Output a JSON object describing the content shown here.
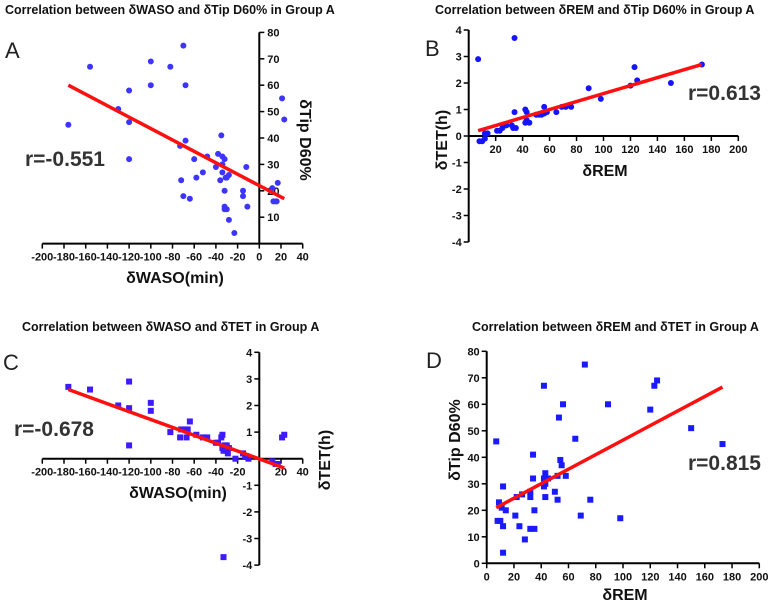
{
  "chart_data": [
    {
      "type": "scatter",
      "panel_letter": "A",
      "title": "Correlation between δWASO and δTip D60% in Group A",
      "xlabel": "δWASO(min)",
      "ylabel": "δTip D60%",
      "r_label": "r=-0.551",
      "xlim": [
        -200,
        40
      ],
      "ylim": [
        0,
        80
      ],
      "xticks": [
        -200,
        -180,
        -160,
        -140,
        -120,
        -100,
        -80,
        -60,
        -40,
        -20,
        0,
        20,
        40
      ],
      "yticks": [
        10,
        20,
        30,
        40,
        50,
        60,
        70,
        80
      ],
      "marker": "circle",
      "point_color": "#3d35ff",
      "line_color": "#ff1010",
      "points": [
        [
          -176,
          45
        ],
        [
          -156,
          67
        ],
        [
          -130,
          51
        ],
        [
          -120,
          58
        ],
        [
          -120,
          46
        ],
        [
          -120,
          32
        ],
        [
          -100,
          69
        ],
        [
          -100,
          60
        ],
        [
          -82,
          67
        ],
        [
          -70,
          75
        ],
        [
          -68,
          60
        ],
        [
          -68,
          39
        ],
        [
          -73,
          37
        ],
        [
          -72,
          24
        ],
        [
          -70,
          18
        ],
        [
          -64,
          17
        ],
        [
          -60,
          32
        ],
        [
          -58,
          25
        ],
        [
          -52,
          27
        ],
        [
          -48,
          33
        ],
        [
          -40,
          29
        ],
        [
          -38,
          34
        ],
        [
          -36,
          24
        ],
        [
          -35,
          41
        ],
        [
          -34,
          33
        ],
        [
          -34,
          30
        ],
        [
          -34,
          27
        ],
        [
          -32,
          32
        ],
        [
          -32,
          20
        ],
        [
          -32,
          14
        ],
        [
          -32,
          13
        ],
        [
          -30,
          13
        ],
        [
          -31,
          25
        ],
        [
          -30,
          25
        ],
        [
          -28,
          26
        ],
        [
          -28,
          9
        ],
        [
          -23,
          4
        ],
        [
          -15,
          20
        ],
        [
          -15,
          18
        ],
        [
          -12,
          29
        ],
        [
          -11,
          14
        ],
        [
          12,
          21
        ],
        [
          13,
          16
        ],
        [
          15,
          16
        ],
        [
          16,
          16
        ],
        [
          17,
          23
        ],
        [
          21,
          55
        ],
        [
          23,
          47
        ]
      ],
      "regression": [
        [
          -176,
          60
        ],
        [
          23,
          17
        ]
      ]
    },
    {
      "type": "scatter",
      "panel_letter": "B",
      "title": "Correlation between δREM and δTip D60% in Group A",
      "xlabel": "δREM",
      "ylabel": "δTET(h)",
      "r_label": "r=0.613",
      "xlim": [
        0,
        200
      ],
      "ylim": [
        -4,
        4
      ],
      "xticks": [
        20,
        40,
        60,
        80,
        100,
        120,
        140,
        160,
        180,
        200
      ],
      "yticks": [
        -4,
        -3,
        -2,
        -1,
        0,
        1,
        2,
        3,
        4
      ],
      "marker": "circle",
      "point_color": "#1414ff",
      "line_color": "#ff1010",
      "points": [
        [
          7,
          2.9
        ],
        [
          34,
          3.7
        ],
        [
          8,
          -0.2
        ],
        [
          10,
          -0.2
        ],
        [
          12,
          -0.1
        ],
        [
          12,
          0.1
        ],
        [
          14,
          0.1
        ],
        [
          21,
          0.2
        ],
        [
          23,
          0.2
        ],
        [
          25,
          0.3
        ],
        [
          28,
          0.4
        ],
        [
          32,
          0.4
        ],
        [
          33,
          0.3
        ],
        [
          34,
          0.9
        ],
        [
          35,
          0.3
        ],
        [
          42,
          1.0
        ],
        [
          42,
          0.5
        ],
        [
          43,
          0.6
        ],
        [
          43,
          0.9
        ],
        [
          45,
          0.5
        ],
        [
          50,
          0.8
        ],
        [
          52,
          0.8
        ],
        [
          54,
          0.8
        ],
        [
          56,
          1.1
        ],
        [
          56,
          0.85
        ],
        [
          58,
          0.9
        ],
        [
          65,
          0.9
        ],
        [
          69,
          1.1
        ],
        [
          72,
          1.1
        ],
        [
          76,
          1.1
        ],
        [
          89,
          1.8
        ],
        [
          98,
          1.4
        ],
        [
          120,
          1.9
        ],
        [
          123,
          2.6
        ],
        [
          125,
          2.1
        ],
        [
          150,
          2.0
        ],
        [
          173,
          2.7
        ]
      ],
      "regression": [
        [
          7,
          0.2
        ],
        [
          173,
          2.7
        ]
      ]
    },
    {
      "type": "scatter",
      "panel_letter": "C",
      "title": "Correlation between δWASO and δTET in Group A",
      "xlabel": "δWASO(min)",
      "ylabel": "δTET(h)",
      "r_label": "r=-0.678",
      "xlim": [
        -200,
        40
      ],
      "ylim": [
        -4,
        4
      ],
      "xticks": [
        -200,
        -180,
        -160,
        -140,
        -120,
        -100,
        -80,
        -60,
        -40,
        -20,
        20,
        40
      ],
      "yticks": [
        -4,
        -3,
        -2,
        -1,
        1,
        2,
        3,
        4
      ],
      "marker": "square",
      "point_color": "#3d1aff",
      "line_color": "#ff1010",
      "points": [
        [
          -176,
          2.7
        ],
        [
          -156,
          2.6
        ],
        [
          -130,
          2.0
        ],
        [
          -120,
          2.9
        ],
        [
          -120,
          1.9
        ],
        [
          -120,
          0.5
        ],
        [
          -100,
          2.1
        ],
        [
          -100,
          1.8
        ],
        [
          -82,
          1.0
        ],
        [
          -73,
          0.8
        ],
        [
          -72,
          1.1
        ],
        [
          -68,
          1.1
        ],
        [
          -66,
          1.1
        ],
        [
          -67,
          0.8
        ],
        [
          -64,
          1.4
        ],
        [
          -58,
          0.9
        ],
        [
          -52,
          0.8
        ],
        [
          -48,
          0.8
        ],
        [
          -40,
          0.6
        ],
        [
          -38,
          0.6
        ],
        [
          -35,
          0.8
        ],
        [
          -34,
          0.9
        ],
        [
          -34,
          0.4
        ],
        [
          -33,
          0.3
        ],
        [
          -32,
          0.5
        ],
        [
          -30,
          0.5
        ],
        [
          -30,
          0.3
        ],
        [
          -28,
          0.4
        ],
        [
          -29,
          0.2
        ],
        [
          -33,
          -3.7
        ],
        [
          -22,
          0
        ],
        [
          -15,
          0.2
        ],
        [
          -13,
          0.1
        ],
        [
          -12,
          0.1
        ],
        [
          -10,
          0
        ],
        [
          12,
          -0.1
        ],
        [
          15,
          -0.2
        ],
        [
          17,
          -0.2
        ],
        [
          21,
          0.8
        ],
        [
          23,
          0.9
        ]
      ],
      "regression": [
        [
          -176,
          2.6
        ],
        [
          23,
          -0.35
        ]
      ]
    },
    {
      "type": "scatter",
      "panel_letter": "D",
      "title": "Correlation between δREM and δTET in Group A",
      "xlabel": "δREM",
      "ylabel": "δTip D60%",
      "r_label": "r=0.815",
      "xlim": [
        0,
        200
      ],
      "ylim": [
        0,
        80
      ],
      "xticks": [
        0,
        20,
        40,
        60,
        80,
        100,
        120,
        140,
        160,
        180,
        200
      ],
      "yticks": [
        0,
        10,
        20,
        30,
        40,
        50,
        60,
        70,
        80
      ],
      "marker": "square",
      "point_color": "#1a1aff",
      "line_color": "#ff1010",
      "points": [
        [
          7,
          46
        ],
        [
          8,
          16
        ],
        [
          10,
          16
        ],
        [
          9,
          23
        ],
        [
          11,
          21
        ],
        [
          12,
          29
        ],
        [
          12,
          14
        ],
        [
          12,
          4
        ],
        [
          14,
          20
        ],
        [
          21,
          18
        ],
        [
          22,
          25
        ],
        [
          24,
          14
        ],
        [
          26,
          26
        ],
        [
          28,
          9
        ],
        [
          32,
          27
        ],
        [
          32,
          25
        ],
        [
          32,
          13
        ],
        [
          34,
          41
        ],
        [
          34,
          32
        ],
        [
          35,
          20
        ],
        [
          35,
          13
        ],
        [
          42,
          67
        ],
        [
          42,
          29
        ],
        [
          42,
          32
        ],
        [
          43,
          34
        ],
        [
          43,
          25
        ],
        [
          43,
          30
        ],
        [
          45,
          32
        ],
        [
          50,
          27
        ],
        [
          52,
          33
        ],
        [
          52,
          24
        ],
        [
          53,
          55
        ],
        [
          54,
          39
        ],
        [
          55,
          37
        ],
        [
          56,
          60
        ],
        [
          58,
          33
        ],
        [
          65,
          47
        ],
        [
          69,
          18
        ],
        [
          72,
          75
        ],
        [
          76,
          24
        ],
        [
          89,
          60
        ],
        [
          98,
          17
        ],
        [
          120,
          58
        ],
        [
          123,
          67
        ],
        [
          125,
          69
        ],
        [
          150,
          51
        ],
        [
          173,
          45
        ]
      ],
      "regression": [
        [
          7,
          21
        ],
        [
          173,
          66.5
        ]
      ]
    }
  ]
}
